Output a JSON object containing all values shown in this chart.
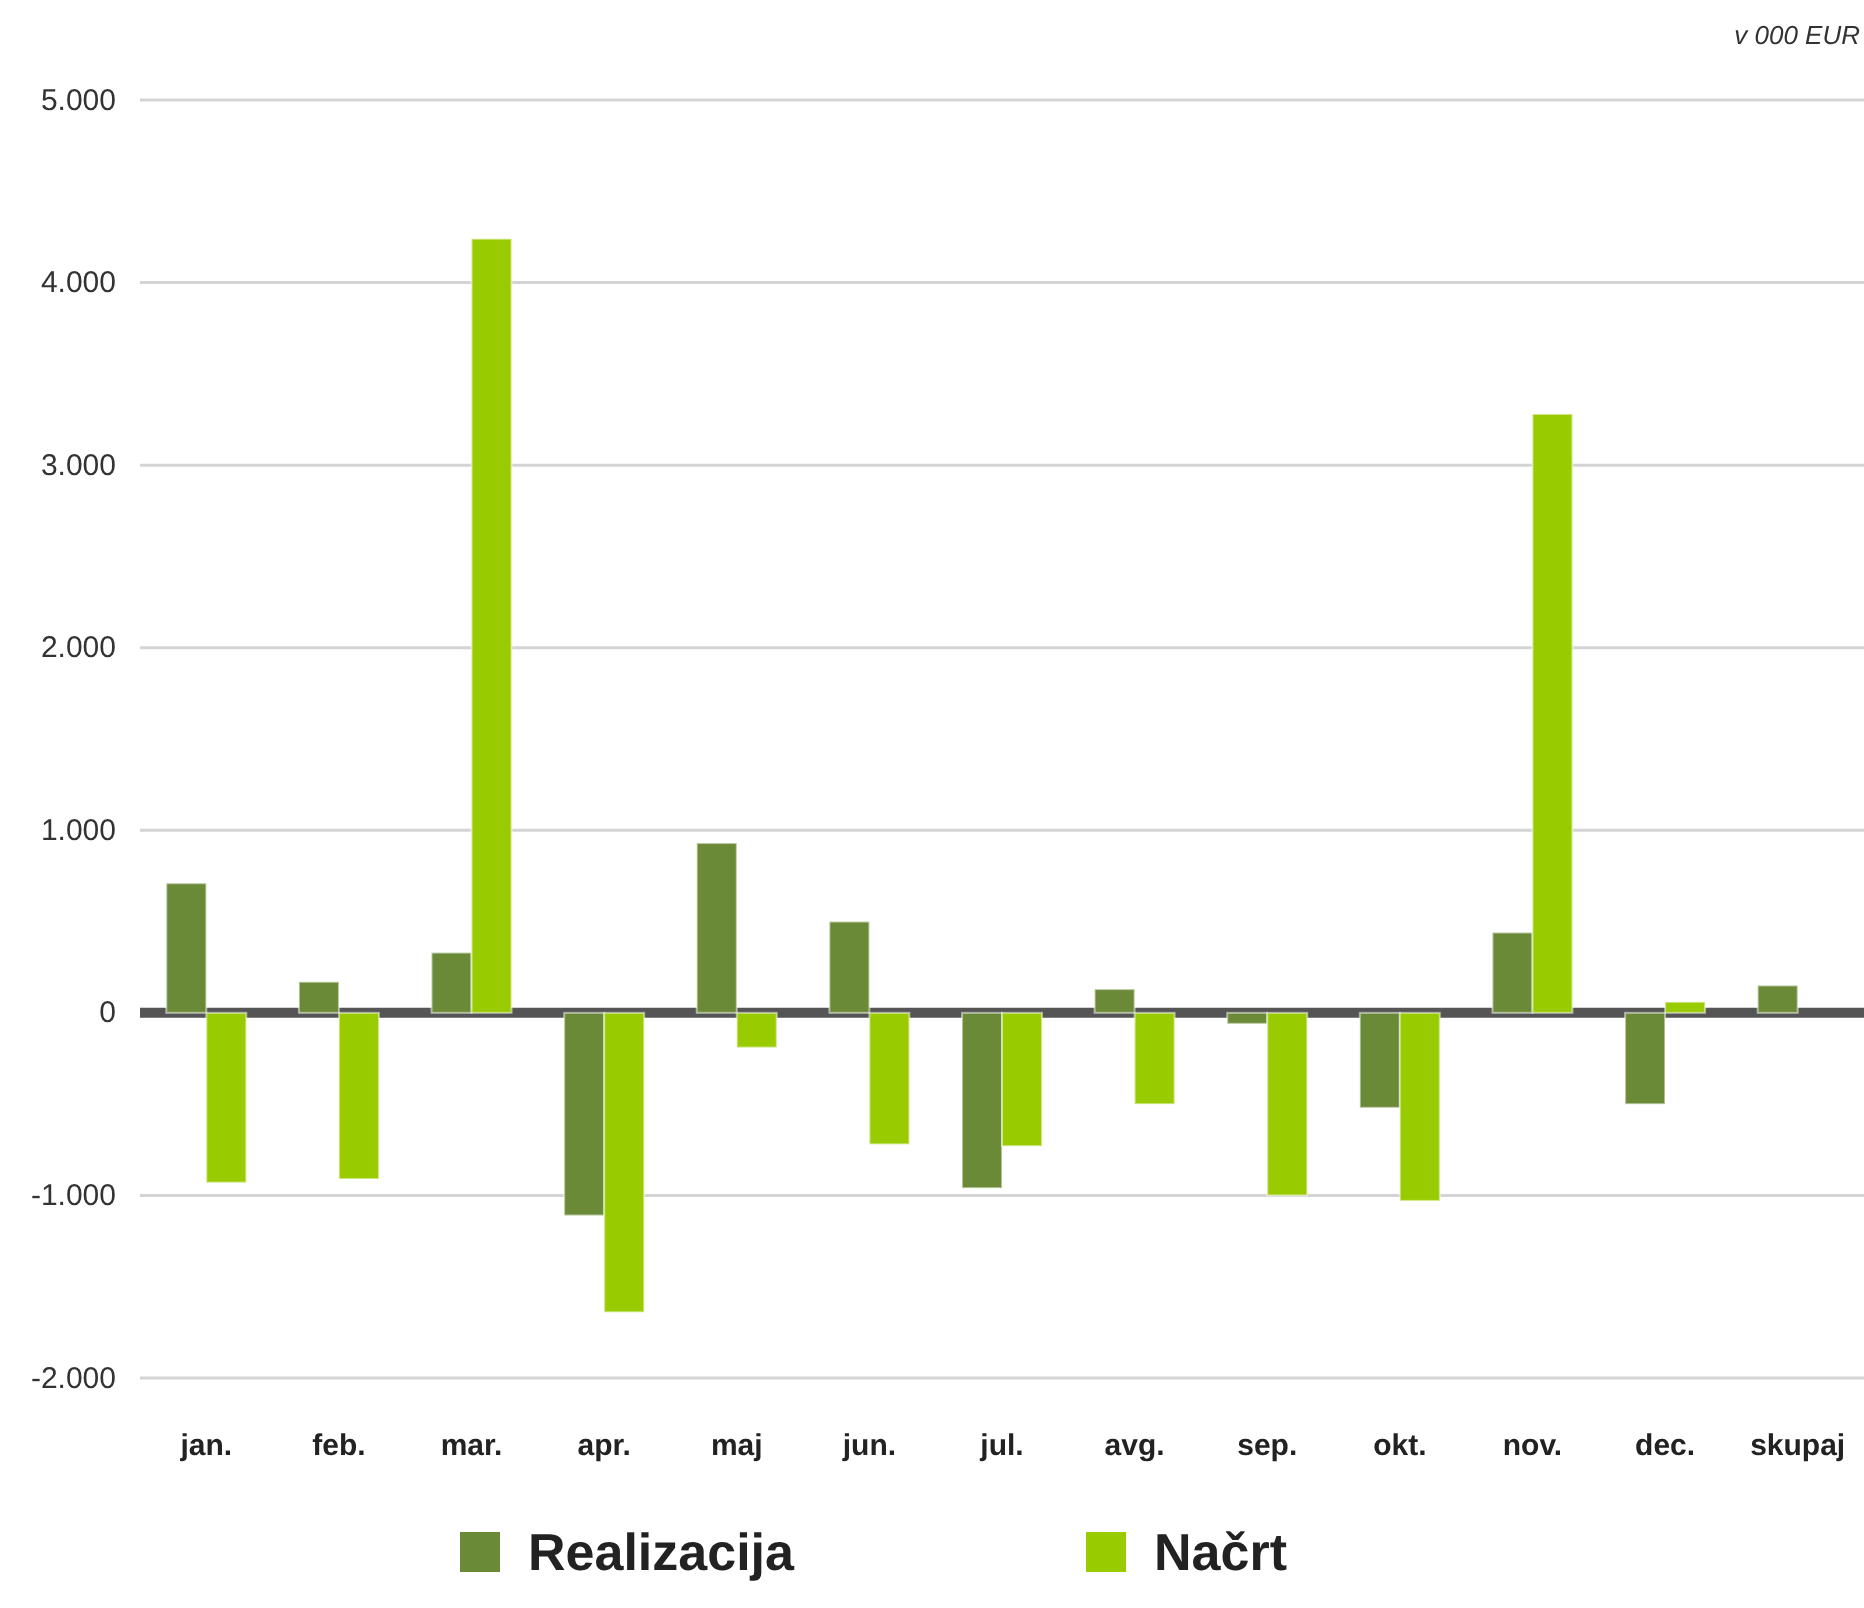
{
  "chart_data": {
    "type": "bar",
    "annotations": [
      "v 000 EUR"
    ],
    "categories": [
      "jan.",
      "feb.",
      "mar.",
      "apr.",
      "maj",
      "jun.",
      "jul.",
      "avg.",
      "sep.",
      "okt.",
      "nov.",
      "dec.",
      "skupaj"
    ],
    "series": [
      {
        "name": "Realizacija",
        "color": "#6b8a37",
        "values": [
          710,
          170,
          330,
          -1110,
          930,
          500,
          -960,
          130,
          -60,
          -520,
          440,
          -500,
          150
        ]
      },
      {
        "name": "Načrt",
        "color": "#99cc00",
        "values": [
          -930,
          -910,
          4240,
          -1640,
          -190,
          -720,
          -730,
          -500,
          -1000,
          -1030,
          3280,
          60,
          null
        ]
      }
    ],
    "ylim": [
      -2000,
      5000
    ],
    "yticks": [
      {
        "value": -2000,
        "label": "-2.000"
      },
      {
        "value": -1000,
        "label": "-1.000"
      },
      0,
      {
        "value": 1000,
        "label": "1.000"
      },
      {
        "value": 2000,
        "label": "2.000"
      },
      {
        "value": 3000,
        "label": "3.000"
      },
      {
        "value": 4000,
        "label": "4.000"
      },
      {
        "value": 5000,
        "label": "5.000"
      }
    ],
    "grid": "y",
    "legend": "bottom"
  }
}
